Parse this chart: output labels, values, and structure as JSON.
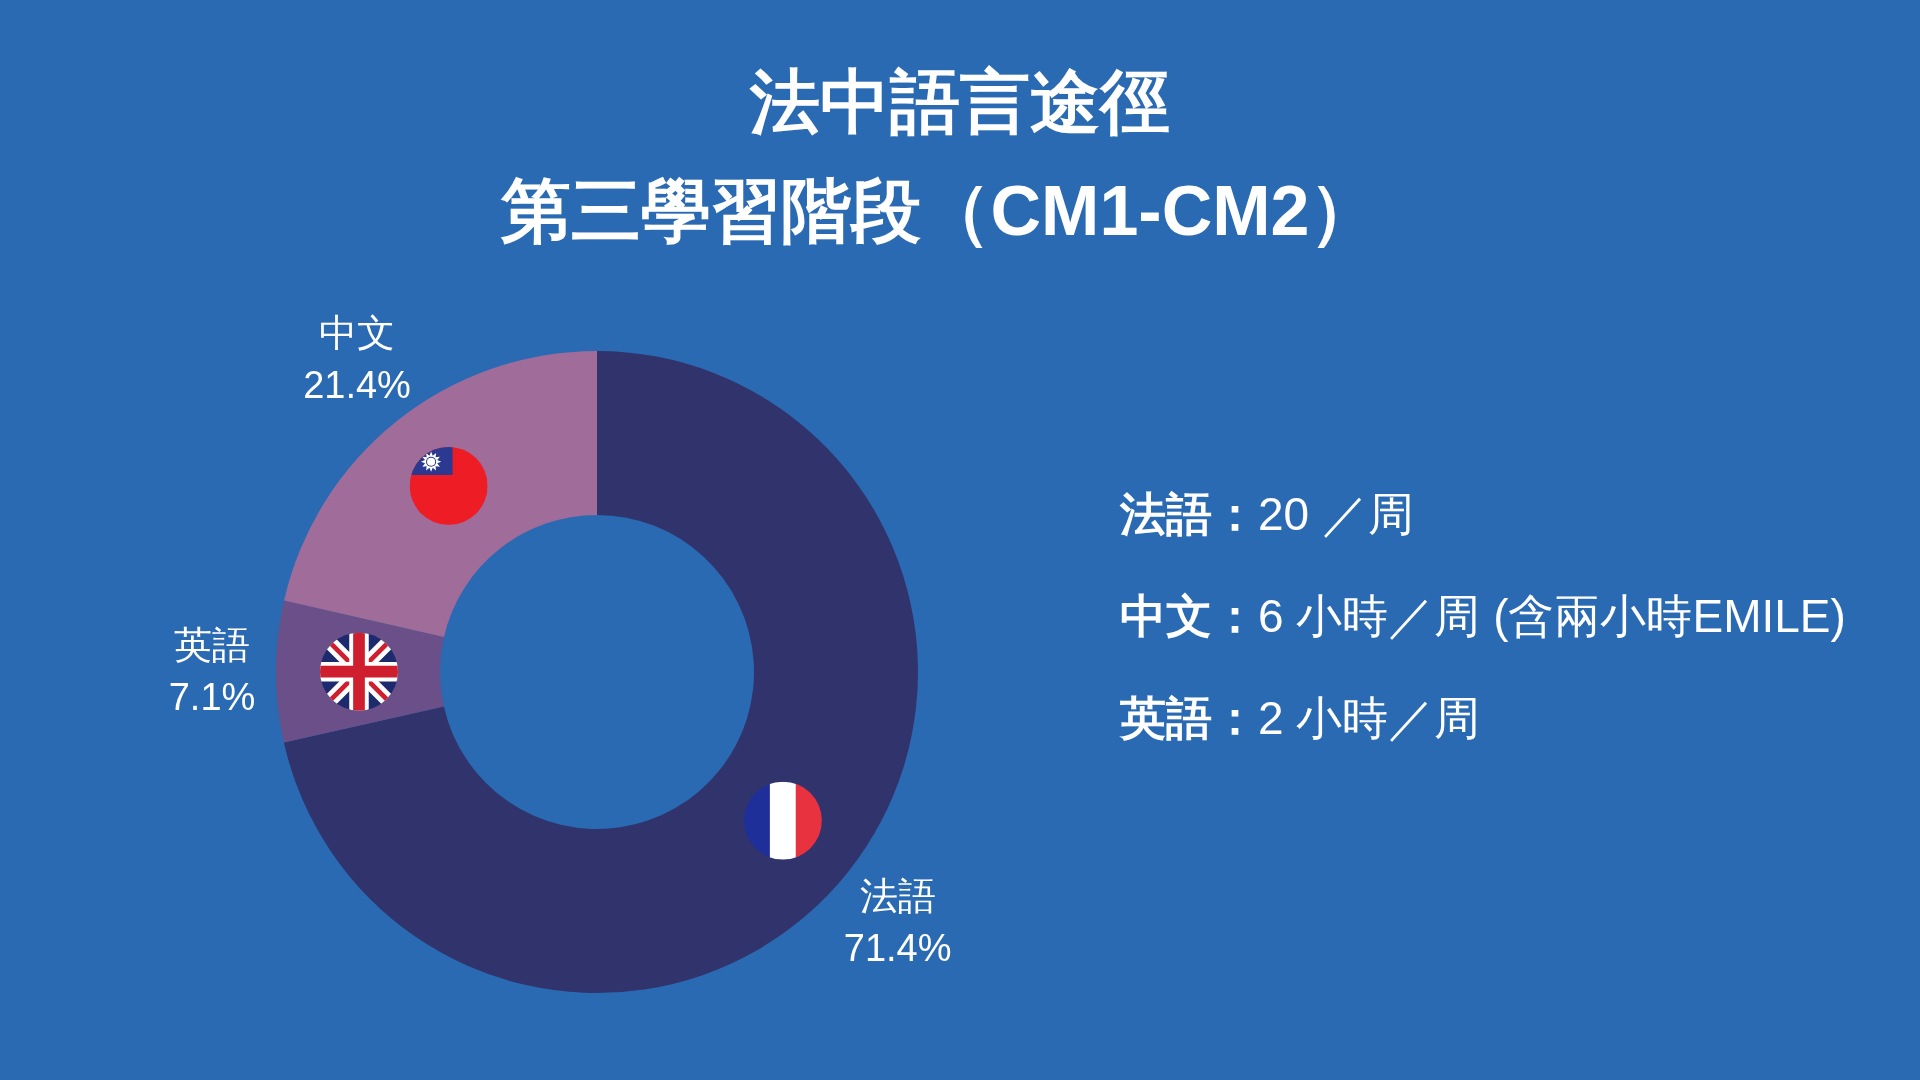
{
  "chart_data": {
    "type": "donut",
    "title": "法中語言途徑",
    "subtitle": "第三學習階段（CM1-CM2）",
    "categories": [
      "法語",
      "英語",
      "中文"
    ],
    "values": [
      71.4,
      7.1,
      21.4
    ],
    "colors": [
      "#31346c",
      "#6b4f88",
      "#a06c9a"
    ],
    "value_labels": [
      "71.4%",
      "7.1%",
      "21.4%"
    ],
    "annotations": [
      "法語：20 ／周",
      "中文：6 小時／周 (含兩小時EMILE)",
      "英語：2 小時／周"
    ]
  }
}
